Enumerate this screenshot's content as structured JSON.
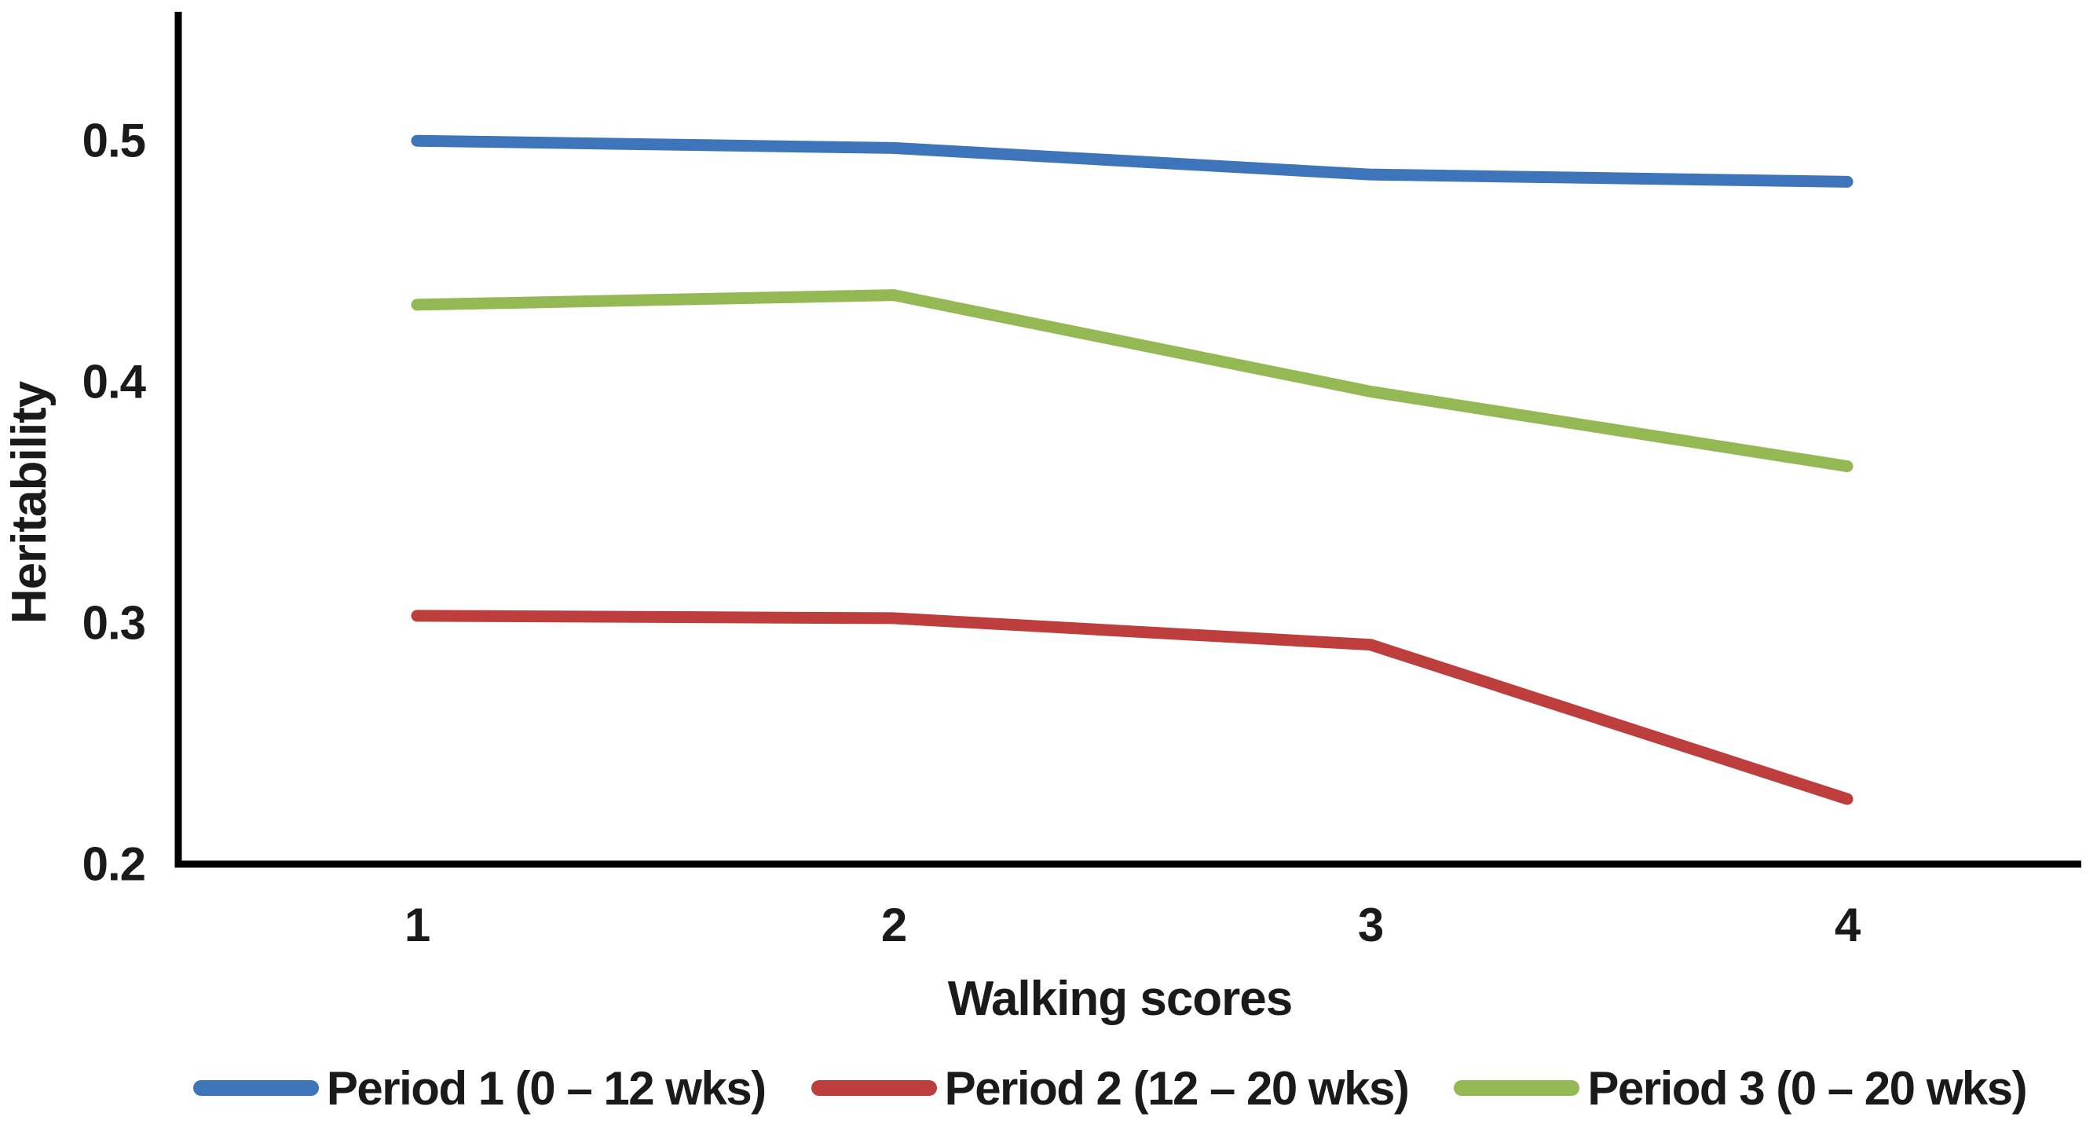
{
  "figure": {
    "background": "#ffffff",
    "axis_color": "#000000",
    "text_color": "#1a1a1a"
  },
  "chart_data": {
    "type": "line",
    "title": "",
    "xlabel": "Walking scores",
    "ylabel": "Heritability",
    "x": [
      1,
      2,
      3,
      4
    ],
    "x_tick_labels": [
      "1",
      "2",
      "3",
      "4"
    ],
    "y_ticks": [
      0.2,
      0.3,
      0.4,
      0.5
    ],
    "y_tick_labels": [
      "0.2",
      "0.3",
      "0.4",
      "0.5"
    ],
    "ylim": [
      0.2,
      0.5535
    ],
    "grid": false,
    "legend_position": "bottom",
    "series": [
      {
        "name": "Period 1 (0 – 12 wks)",
        "color": "#3E74B9",
        "values": [
          0.5,
          0.497,
          0.486,
          0.483
        ]
      },
      {
        "name": "Period 2 (12 – 20 wks)",
        "color": "#BE3E3D",
        "values": [
          0.303,
          0.302,
          0.291,
          0.227
        ]
      },
      {
        "name": "Period 3 (0 – 20 wks)",
        "color": "#94B954",
        "values": [
          0.432,
          0.436,
          0.396,
          0.365
        ]
      }
    ]
  }
}
